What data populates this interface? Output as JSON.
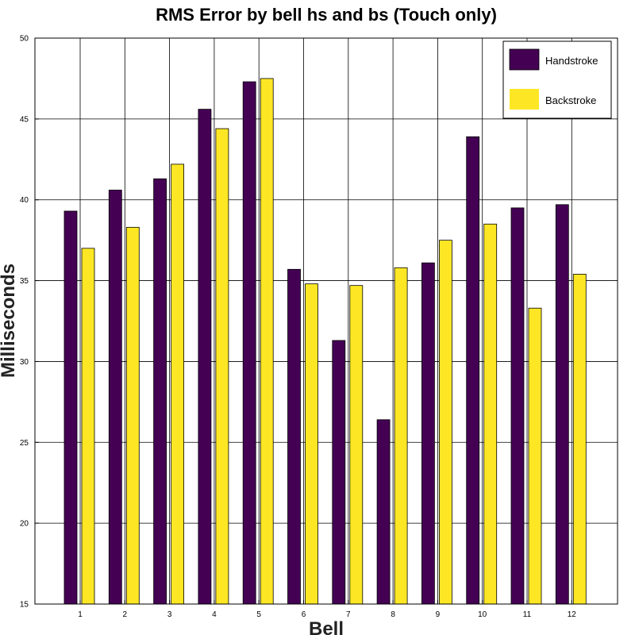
{
  "chart_data": {
    "type": "bar",
    "title": "RMS Error by bell hs and bs (Touch only)",
    "xlabel": "Bell",
    "ylabel": "Milliseconds",
    "ylim": [
      15,
      50
    ],
    "yticks": [
      15,
      20,
      25,
      30,
      35,
      40,
      45,
      50
    ],
    "grid": true,
    "legend_position": "top-right",
    "categories": [
      "1",
      "2",
      "3",
      "4",
      "5",
      "6",
      "7",
      "8",
      "9",
      "10",
      "11",
      "12"
    ],
    "series": [
      {
        "name": "Handstroke",
        "color": "#440154",
        "values": [
          39.3,
          40.6,
          41.3,
          45.6,
          47.3,
          35.7,
          31.3,
          26.4,
          36.1,
          43.9,
          39.5,
          39.7
        ]
      },
      {
        "name": "Backstroke",
        "color": "#fde725",
        "values": [
          37.0,
          38.3,
          42.2,
          44.4,
          47.5,
          34.8,
          34.7,
          35.8,
          37.5,
          38.5,
          33.3,
          35.4
        ]
      }
    ]
  }
}
